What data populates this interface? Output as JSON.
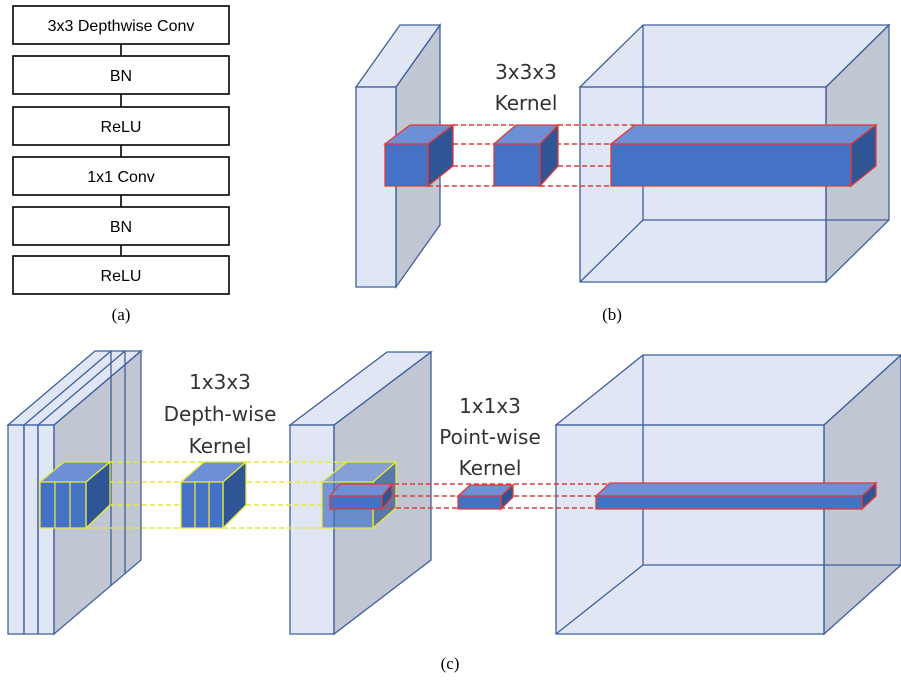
{
  "panel_a": {
    "layers": [
      "3x3 Depthwise Conv",
      "BN",
      "ReLU",
      "1x1 Conv",
      "BN",
      "ReLU"
    ],
    "caption": "(a)"
  },
  "panel_b": {
    "kernel_label_line1": "3x3x3",
    "kernel_label_line2": "Kernel",
    "caption": "(b)"
  },
  "panel_c": {
    "depthwise_label_line1": "1x3x3",
    "depthwise_label_line2": "Depth-wise",
    "depthwise_label_line3": "Kernel",
    "pointwise_label_line1": "1x1x3",
    "pointwise_label_line2": "Point-wise",
    "pointwise_label_line3": "Kernel",
    "caption": "(c)"
  },
  "colors": {
    "volume": "#c6d2ea",
    "kernel": "#4472c4",
    "standard_link": "#e03a3a",
    "depthwise_link": "#e6e83a"
  }
}
